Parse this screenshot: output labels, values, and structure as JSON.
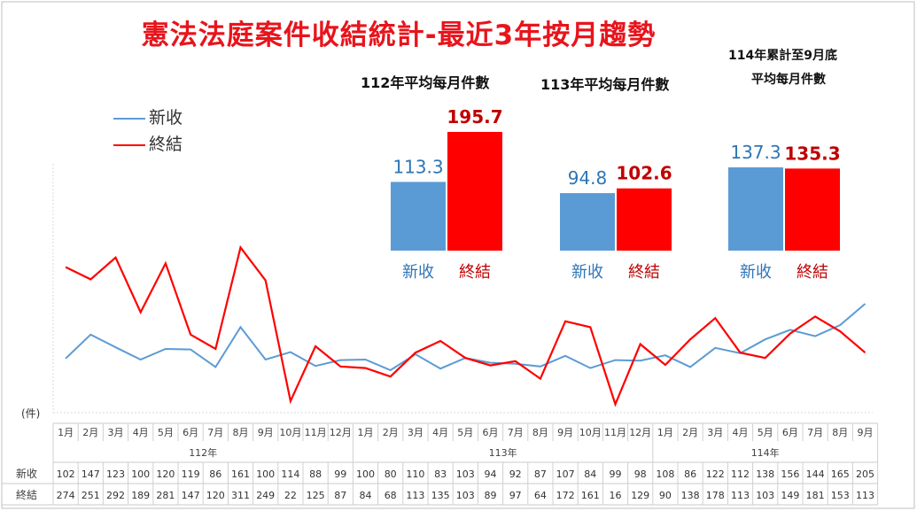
{
  "title": "憲法法庭案件收結統計-最近3年按月趨勢",
  "legend": {
    "new_label": "新收",
    "closed_label": "終結"
  },
  "unit_label": "(件)",
  "colors": {
    "new": "#5b9bd5",
    "closed": "#ff0000",
    "title": "#e8141c",
    "new_value_text": "#2e75b6",
    "closed_value_text": "#c00000"
  },
  "avg_panels": [
    {
      "header": "112年平均每月件數",
      "new": 113.3,
      "closed": 195.7,
      "new_label": "新收",
      "closed_label": "終結"
    },
    {
      "header": "113年平均每月件數",
      "new": 94.8,
      "closed": 102.6,
      "new_label": "新收",
      "closed_label": "終結"
    },
    {
      "header_line1": "114年累計至9月底",
      "header_line2": "平均每月件數",
      "new": 137.3,
      "closed": 135.3,
      "new_label": "新收",
      "closed_label": "終結"
    }
  ],
  "chart_data": {
    "type": "line",
    "years": [
      {
        "label": "112年",
        "months": 12
      },
      {
        "label": "113年",
        "months": 12
      },
      {
        "label": "114年",
        "months": 9
      }
    ],
    "categories": [
      "1月",
      "2月",
      "3月",
      "4月",
      "5月",
      "6月",
      "7月",
      "8月",
      "9月",
      "10月",
      "11月",
      "12月",
      "1月",
      "2月",
      "3月",
      "4月",
      "5月",
      "6月",
      "7月",
      "8月",
      "9月",
      "10月",
      "11月",
      "12月",
      "1月",
      "2月",
      "3月",
      "4月",
      "5月",
      "6月",
      "7月",
      "8月",
      "9月"
    ],
    "series": [
      {
        "name": "新收",
        "values": [
          102,
          147,
          123,
          100,
          120,
          119,
          86,
          161,
          100,
          114,
          88,
          99,
          100,
          80,
          110,
          83,
          103,
          94,
          92,
          87,
          107,
          84,
          99,
          98,
          108,
          86,
          122,
          112,
          138,
          156,
          144,
          165,
          205
        ]
      },
      {
        "name": "終結",
        "values": [
          274,
          251,
          292,
          189,
          281,
          147,
          120,
          311,
          249,
          22,
          125,
          87,
          84,
          68,
          113,
          135,
          103,
          89,
          97,
          64,
          172,
          161,
          16,
          129,
          90,
          138,
          178,
          113,
          103,
          149,
          181,
          153,
          113
        ]
      }
    ],
    "ylim": [
      0,
      700
    ],
    "grid": false
  }
}
